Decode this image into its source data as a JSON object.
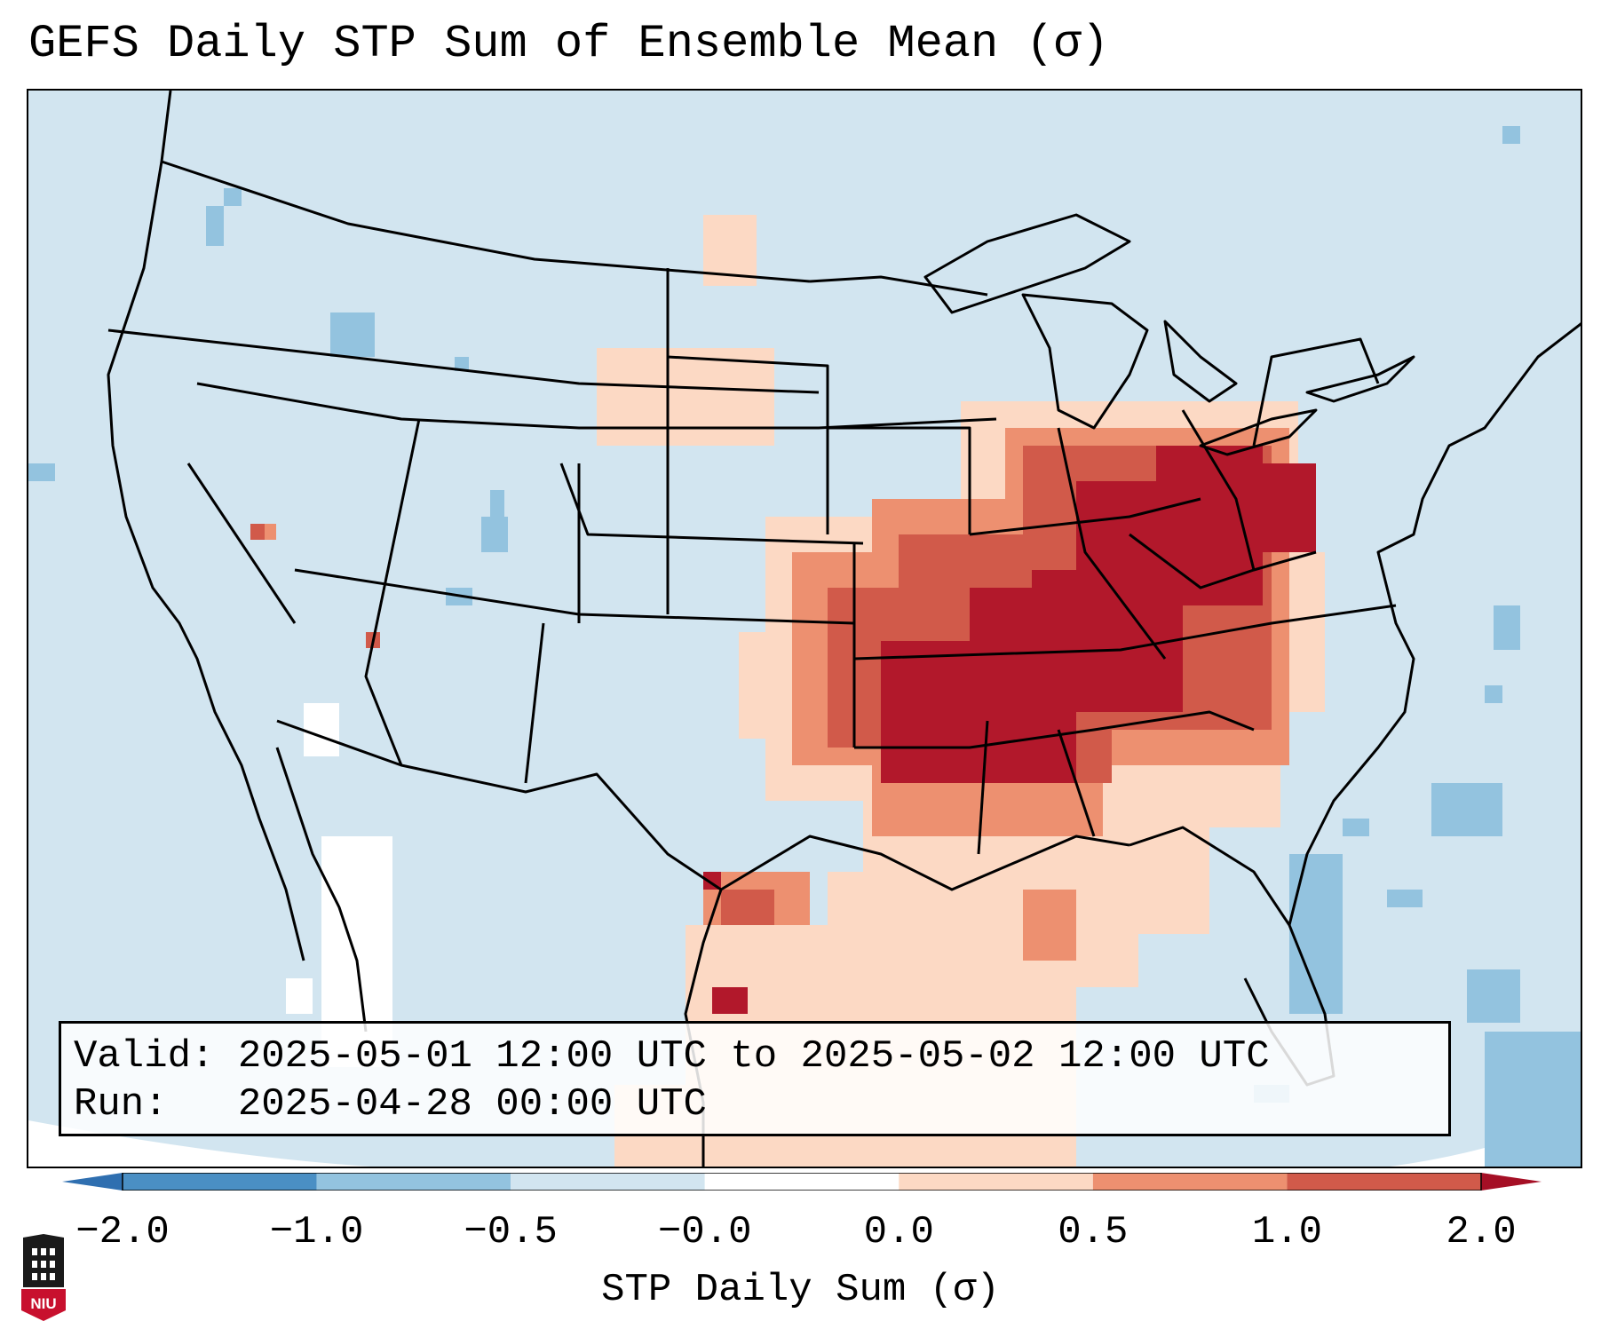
{
  "title": "GEFS Daily STP Sum of Ensemble Mean (σ)",
  "info": {
    "valid_label": "Valid:",
    "valid_value": "2025-05-01 12:00 UTC to 2025-05-02 12:00 UTC",
    "run_label": "Run:",
    "run_value": "2025-04-28 00:00 UTC"
  },
  "colorbar": {
    "label": "STP Daily Sum (σ)",
    "ticks": [
      "−2.0",
      "−1.0",
      "−0.5",
      "−0.0",
      "0.0",
      "0.5",
      "1.0",
      "2.0"
    ],
    "colors": [
      "#4a8fc4",
      "#93c3df",
      "#d2e5f0",
      "#ffffff",
      "#fcd9c4",
      "#ed9070",
      "#d15a4a",
      "#b2182b"
    ],
    "extend_low_color": "#2f6fb0",
    "extend_high_color": "#a50f25"
  },
  "logo": {
    "text": "NIU",
    "color": "#c8102e"
  }
}
